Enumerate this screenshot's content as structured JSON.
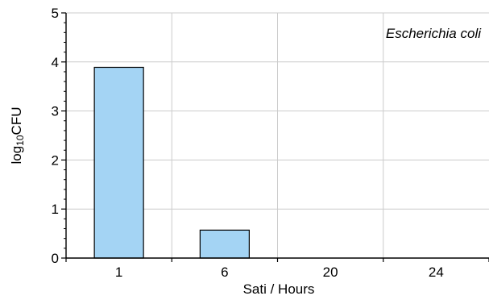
{
  "chart_data": {
    "type": "bar",
    "categories": [
      "1",
      "6",
      "20",
      "24"
    ],
    "values": [
      3.89,
      0.57,
      0,
      0
    ],
    "xlabel": "Sati / Hours",
    "ylabel": {
      "base": "log",
      "subscript": "10",
      "rest": "CFU"
    },
    "annotation": "Escherichia coli",
    "ylim": [
      0,
      5
    ],
    "yticks": [
      0,
      1,
      2,
      3,
      4,
      5
    ],
    "grid": true,
    "legend": "none"
  },
  "colors": {
    "bar_fill": "#a4d4f4",
    "bar_stroke": "#000000",
    "grid": "#cccccc",
    "axis": "#000000",
    "background": "#ffffff"
  }
}
